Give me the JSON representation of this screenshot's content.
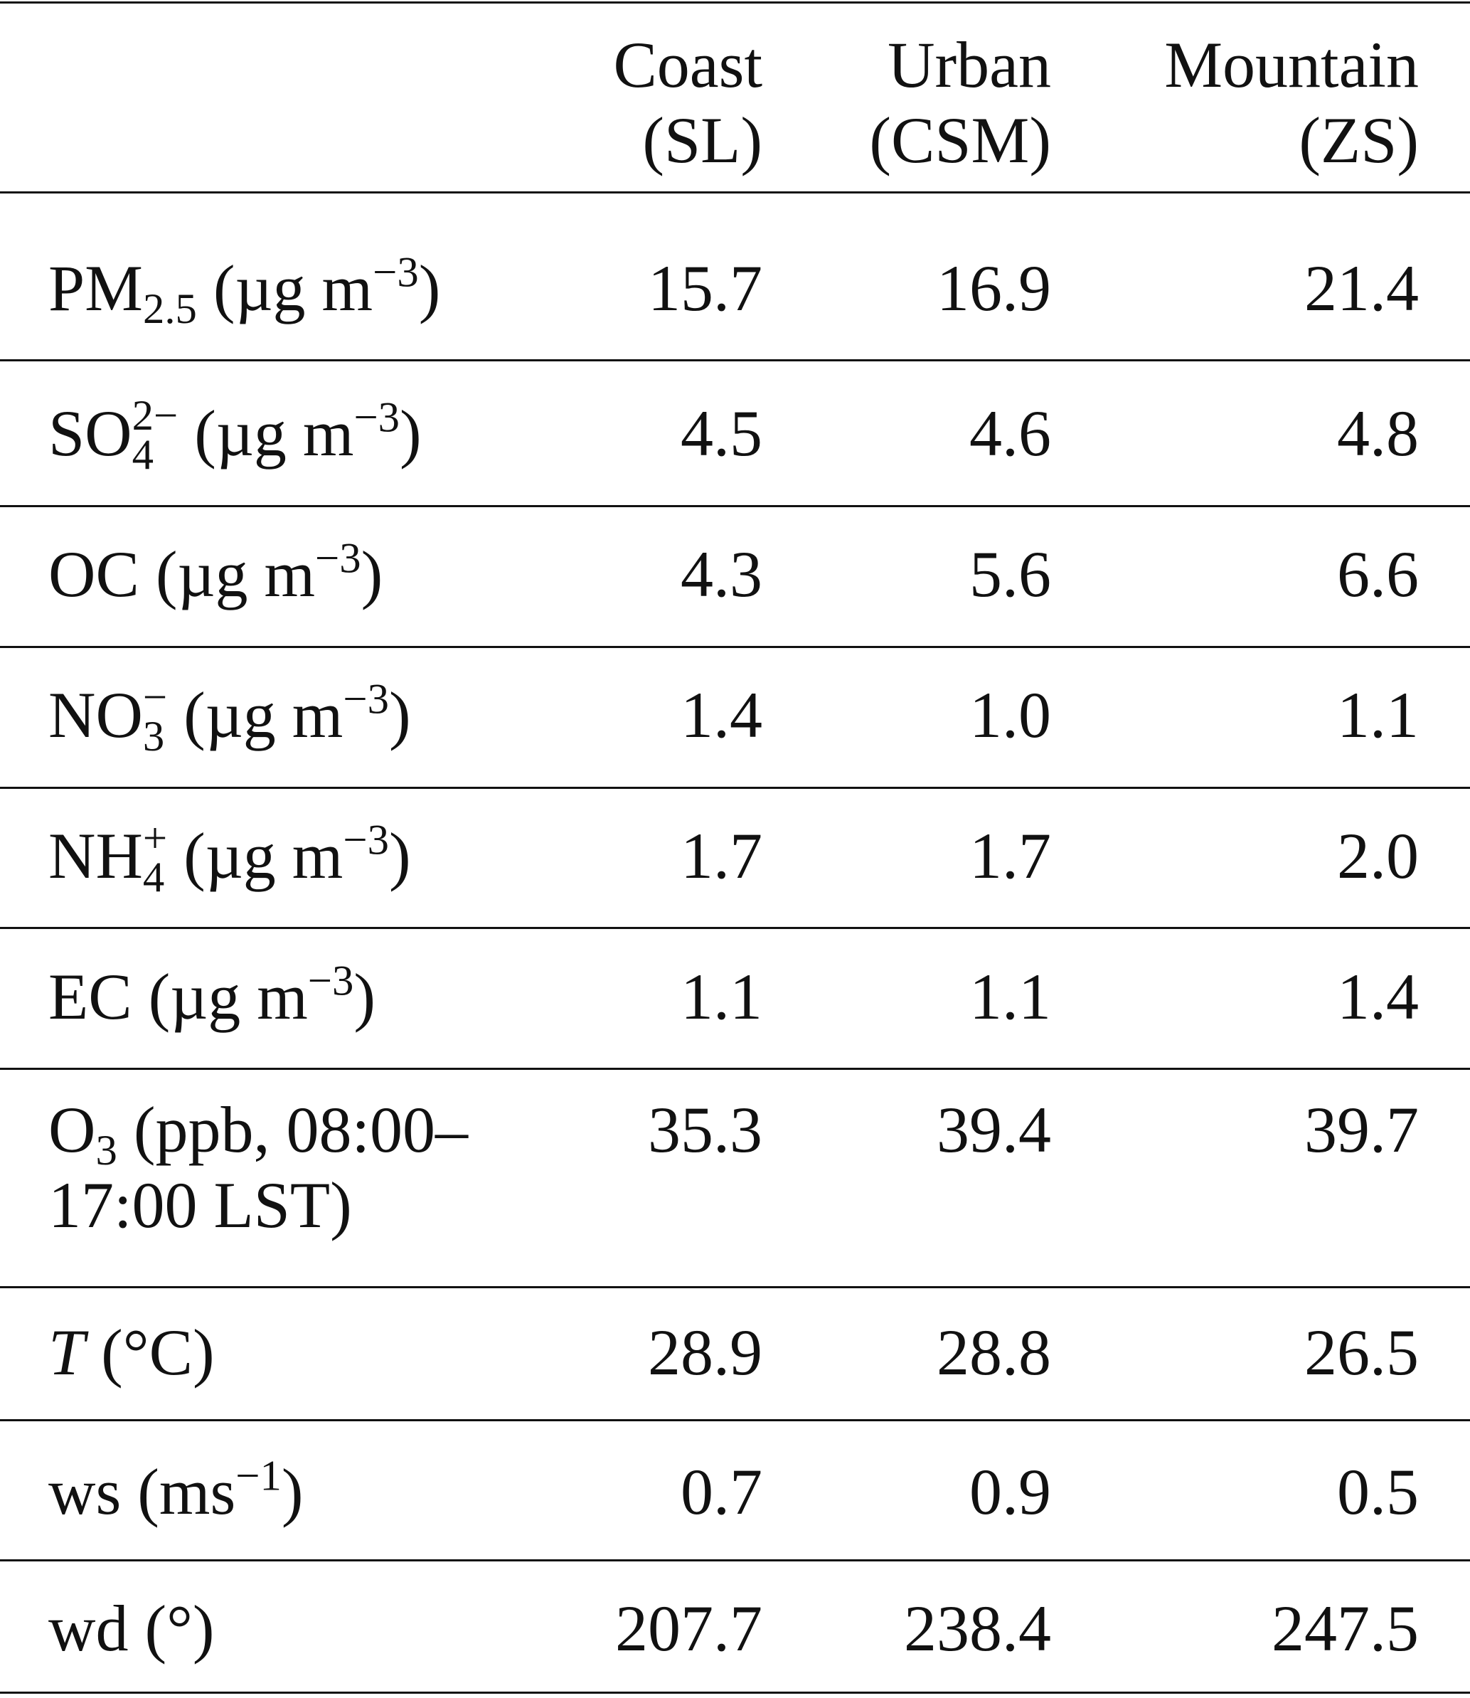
{
  "table": {
    "columns": [
      {
        "line1": "Coast",
        "line2": "(SL)"
      },
      {
        "line1": "Urban",
        "line2": "(CSM)"
      },
      {
        "line1": "Mountain",
        "line2": "(ZS)"
      }
    ],
    "unit_conc": "(µg m",
    "unit_exp": "−3",
    "close": ")",
    "rows": [
      {
        "base": "PM",
        "sub": "2.5",
        "values": [
          "15.7",
          "16.9",
          "21.4"
        ]
      },
      {
        "base": "SO",
        "sub": "4",
        "sup": "2−",
        "values": [
          "4.5",
          "4.6",
          "4.8"
        ]
      },
      {
        "base": "OC",
        "values": [
          "4.3",
          "5.6",
          "6.6"
        ]
      },
      {
        "base": "NO",
        "sub": "3",
        "sup": "−",
        "values": [
          "1.4",
          "1.0",
          "1.1"
        ]
      },
      {
        "base": "NH",
        "sub": "4",
        "sup": "+",
        "values": [
          "1.7",
          "1.7",
          "2.0"
        ]
      },
      {
        "base": "EC",
        "values": [
          "1.1",
          "1.1",
          "1.4"
        ]
      },
      {
        "base": "O",
        "sub": "3",
        "rest1": " (ppb, 08:00–",
        "rest2": "17:00 LST)",
        "values": [
          "35.3",
          "39.4",
          "39.7"
        ]
      },
      {
        "base": "T",
        "rest": " (°C)",
        "values": [
          "28.9",
          "28.8",
          "26.5"
        ]
      },
      {
        "base": "ws (ms",
        "sup": "−1",
        "rest": ")",
        "values": [
          "0.7",
          "0.9",
          "0.5"
        ]
      },
      {
        "base": "wd (°)",
        "values": [
          "207.7",
          "238.4",
          "247.5"
        ]
      }
    ]
  }
}
